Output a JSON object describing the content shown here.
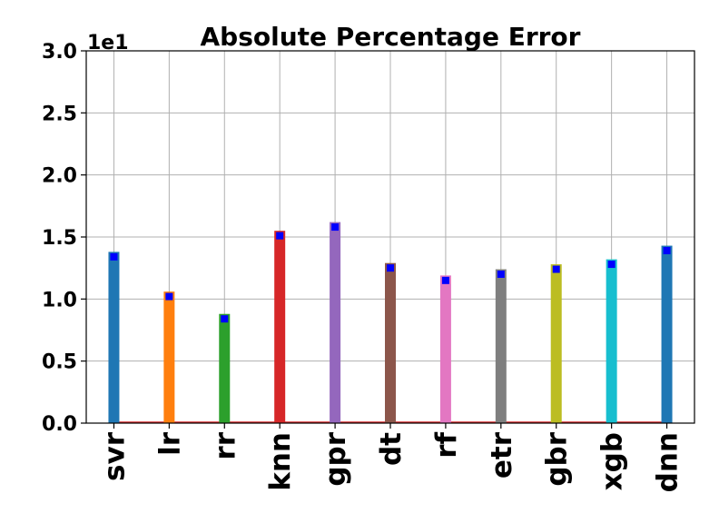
{
  "chart_data": {
    "type": "bar",
    "title": "Absolute Percentage Error",
    "xlabel": "",
    "ylabel": "",
    "y_multiplier_label": "1e1",
    "ylim": [
      0,
      30
    ],
    "yticks": [
      0,
      5,
      10,
      15,
      20,
      25,
      30
    ],
    "ytick_labels": [
      "0.0",
      "0.5",
      "1.0",
      "1.5",
      "2.0",
      "2.5",
      "3.0"
    ],
    "grid": true,
    "categories": [
      "svr",
      "lr",
      "rr",
      "knn",
      "gpr",
      "dt",
      "rf",
      "etr",
      "gbr",
      "xgb",
      "dnn"
    ],
    "values": [
      13.8,
      10.6,
      8.8,
      15.5,
      16.2,
      12.9,
      11.9,
      12.4,
      12.8,
      13.2,
      14.3
    ],
    "marker_values": [
      13.4,
      10.2,
      8.4,
      15.1,
      15.8,
      12.5,
      11.5,
      12.0,
      12.4,
      12.8,
      13.9
    ],
    "colors": [
      "#1f77b4",
      "#ff7f0e",
      "#2ca02c",
      "#d62728",
      "#9467bd",
      "#8c564b",
      "#e377c2",
      "#7f7f7f",
      "#bcbd22",
      "#17becf",
      "#1f77b4"
    ],
    "marker_color": "#0000ff",
    "baseline_color": "#d62728"
  }
}
